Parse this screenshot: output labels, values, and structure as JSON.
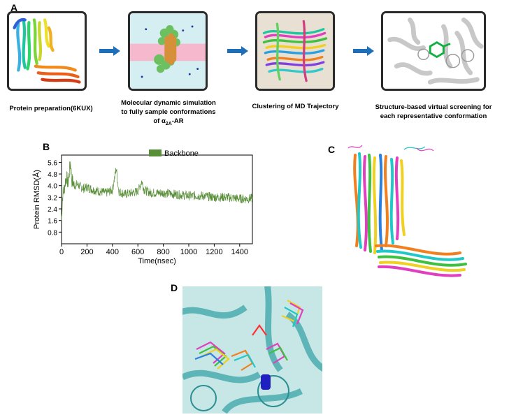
{
  "panels": {
    "a": "A",
    "b": "B",
    "c": "C",
    "d": "D"
  },
  "workflow": {
    "steps": [
      {
        "caption_lines": [
          "Protein preparation(6KUX)"
        ]
      },
      {
        "caption_lines": [
          "Molecular dynamic simulation",
          "to fully sample conformations"
        ],
        "caption_prefix": "of  α",
        "caption_sub": "2A",
        "caption_suffix": "-AR"
      },
      {
        "caption_lines": [
          "Clustering of  MD Trajectory"
        ]
      },
      {
        "caption_lines": [
          "Structure-based virtual screening for",
          "each representative conformation"
        ]
      }
    ],
    "arrow_color": "#1f6fb8"
  },
  "chart_data": {
    "type": "line",
    "title": "",
    "xlabel": "Time(nsec)",
    "ylabel": "Protein RMSD(Å)",
    "x_ticks": [
      0,
      200,
      400,
      600,
      800,
      1000,
      1200,
      1400
    ],
    "y_ticks": [
      0.8,
      1.6,
      2.4,
      3.2,
      4.0,
      4.8,
      5.6
    ],
    "xlim": [
      0,
      1500
    ],
    "ylim": [
      0,
      6.1
    ],
    "legend_position": "top-center",
    "series": [
      {
        "name": "Backbone",
        "color": "#5a8f3a",
        "x": [
          0,
          5,
          10,
          20,
          30,
          40,
          50,
          60,
          70,
          80,
          90,
          100,
          125,
          150,
          175,
          200,
          250,
          300,
          350,
          400,
          430,
          450,
          500,
          550,
          600,
          630,
          650,
          700,
          800,
          900,
          1000,
          1100,
          1200,
          1300,
          1400,
          1500
        ],
        "y": [
          1.6,
          2.7,
          3.4,
          3.7,
          4.3,
          4.6,
          4.1,
          4.8,
          5.6,
          4.4,
          4.2,
          4.0,
          4.1,
          3.9,
          3.8,
          3.9,
          3.7,
          3.6,
          3.5,
          3.7,
          5.2,
          3.6,
          3.4,
          3.5,
          3.6,
          4.3,
          3.7,
          3.5,
          3.5,
          3.4,
          3.3,
          3.3,
          3.2,
          3.2,
          3.1,
          3.1
        ]
      }
    ]
  }
}
